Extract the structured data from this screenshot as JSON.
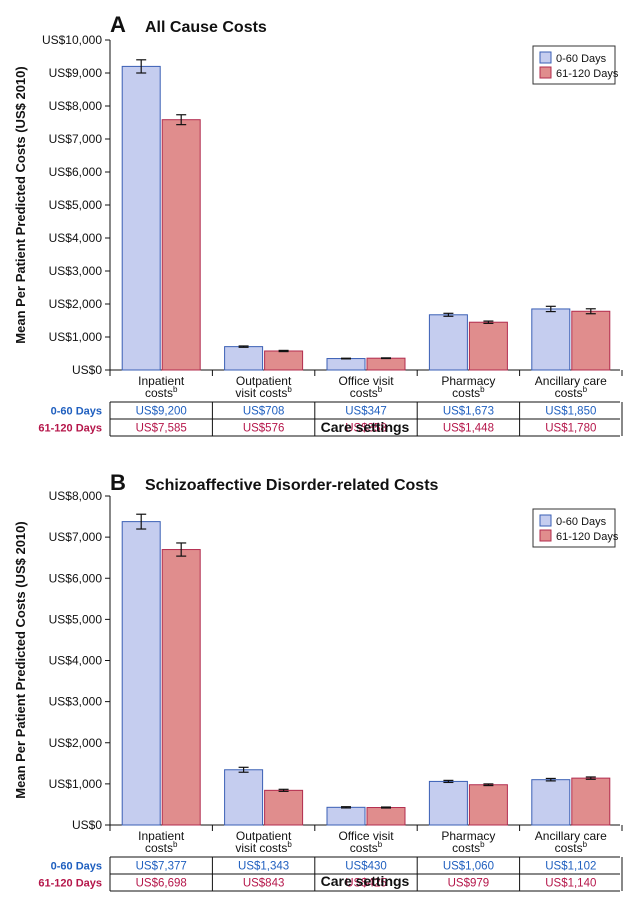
{
  "chart_data": [
    {
      "type": "bar",
      "panel_letter": "A",
      "title": "All Cause Costs",
      "ylabel": "Mean Per Patient Predicted Costs (US$ 2010)",
      "xlabel": "Care settings",
      "ylim": [
        0,
        10000
      ],
      "yticks": [
        0,
        1000,
        2000,
        3000,
        4000,
        5000,
        6000,
        7000,
        8000,
        9000,
        10000
      ],
      "ytick_labels": [
        "US$0",
        "US$1,000",
        "US$2,000",
        "US$3,000",
        "US$4,000",
        "US$5,000",
        "US$6,000",
        "US$7,000",
        "US$8,000",
        "US$9,000",
        "US$10,000"
      ],
      "categories": [
        {
          "line1": "Inpatient",
          "line2": "costs",
          "sup": "b"
        },
        {
          "line1": "Outpatient",
          "line2": "visit costs",
          "sup": "b"
        },
        {
          "line1": "Office visit",
          "line2": "costs",
          "sup": "b"
        },
        {
          "line1": "Pharmacy",
          "line2": "costs",
          "sup": "b"
        },
        {
          "line1": "Ancillary care",
          "line2": "costs",
          "sup": "b"
        }
      ],
      "series": [
        {
          "name": "0-60 Days",
          "values": [
            9200,
            708,
            347,
            1673,
            1850
          ],
          "errors": [
            200,
            20,
            10,
            45,
            80
          ],
          "labels": [
            "US$9,200",
            "US$708",
            "US$347",
            "US$1,673",
            "US$1,850"
          ],
          "color": "#c5cdef",
          "stroke": "#3a5fb5",
          "label_color": "#1f5fbf"
        },
        {
          "name": "61-120 Days",
          "values": [
            7585,
            576,
            358,
            1448,
            1780
          ],
          "errors": [
            150,
            18,
            10,
            35,
            75
          ],
          "labels": [
            "US$7,585",
            "US$576",
            "US$358",
            "US$1,448",
            "US$1,780"
          ],
          "color": "#e08d8d",
          "stroke": "#b22c4e",
          "label_color": "#b5164a"
        }
      ],
      "legend": "top-right",
      "grid": false
    },
    {
      "type": "bar",
      "panel_letter": "B",
      "title": "Schizoaffective Disorder-related Costs",
      "ylabel": "Mean Per Patient Predicted Costs (US$ 2010)",
      "xlabel": "Care settings",
      "ylim": [
        0,
        8000
      ],
      "yticks": [
        0,
        1000,
        2000,
        3000,
        4000,
        5000,
        6000,
        7000,
        8000
      ],
      "ytick_labels": [
        "US$0",
        "US$1,000",
        "US$2,000",
        "US$3,000",
        "US$4,000",
        "US$5,000",
        "US$6,000",
        "US$7,000",
        "US$8,000"
      ],
      "categories": [
        {
          "line1": "Inpatient",
          "line2": "costs",
          "sup": "b"
        },
        {
          "line1": "Outpatient",
          "line2": "visit costs",
          "sup": "b"
        },
        {
          "line1": "Office visit",
          "line2": "costs",
          "sup": "b"
        },
        {
          "line1": "Pharmacy",
          "line2": "costs",
          "sup": "b"
        },
        {
          "line1": "Ancillary care",
          "line2": "costs",
          "sup": "b"
        }
      ],
      "series": [
        {
          "name": "0-60 Days",
          "values": [
            7377,
            1343,
            430,
            1060,
            1102
          ],
          "errors": [
            180,
            60,
            15,
            25,
            30
          ],
          "labels": [
            "US$7,377",
            "US$1,343",
            "US$430",
            "US$1,060",
            "US$1,102"
          ],
          "color": "#c5cdef",
          "stroke": "#3a5fb5",
          "label_color": "#1f5fbf"
        },
        {
          "name": "61-120 Days",
          "values": [
            6698,
            843,
            425,
            979,
            1140
          ],
          "errors": [
            160,
            25,
            12,
            20,
            28
          ],
          "labels": [
            "US$6,698",
            "US$843",
            "US$425",
            "US$979",
            "US$1,140"
          ],
          "color": "#e08d8d",
          "stroke": "#b22c4e",
          "label_color": "#b5164a"
        }
      ],
      "legend": "top-right",
      "grid": false
    }
  ]
}
